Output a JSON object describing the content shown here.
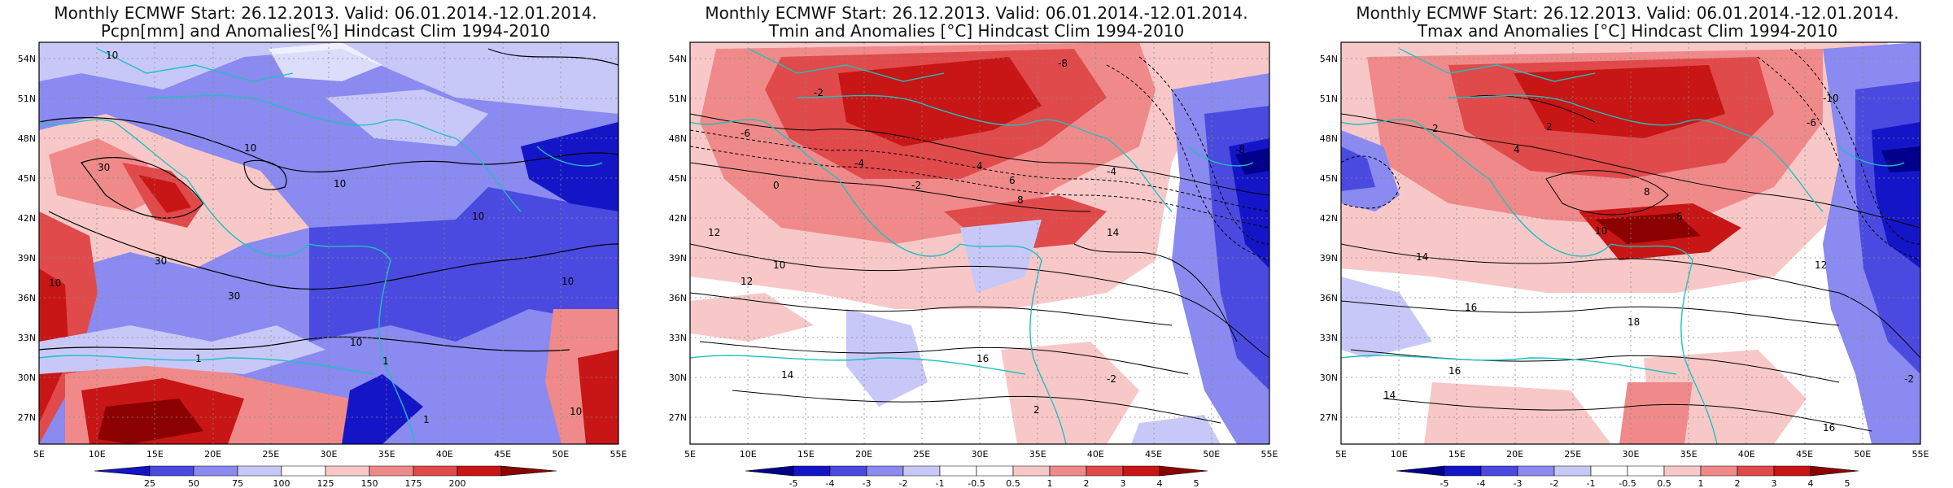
{
  "panels": [
    {
      "title_line1": "Monthly ECMWF Start: 26.12.2013. Valid: 06.01.2014.-12.01.2014.",
      "title_line2": "Pcpn[mm] and Anomalies[%] Hindcast Clim 1994-2010",
      "colorbar_labels": [
        "25",
        "50",
        "75",
        "100",
        "125",
        "150",
        "175",
        "200"
      ],
      "contour_labels": [
        "10",
        "10",
        "30",
        "30",
        "10",
        "10",
        "10",
        "30",
        "10",
        "1",
        "1",
        "1",
        "10",
        "10"
      ],
      "colors": [
        "#1515c8",
        "#4a4ae0",
        "#8a8af0",
        "#c8c8f8",
        "#ffffff",
        "#f8c8c8",
        "#f08a8a",
        "#e04a4a",
        "#c81515",
        "#8b0000"
      ]
    },
    {
      "title_line1": "Monthly ECMWF Start: 26.12.2013. Valid: 06.01.2014.-12.01.2014.",
      "title_line2": "Tmin and Anomalies [°C] Hindcast Clim 1994-2010",
      "colorbar_labels": [
        "-5",
        "-4",
        "-3",
        "-2",
        "-1",
        "-0.5",
        "0.5",
        "1",
        "2",
        "3",
        "4",
        "5"
      ],
      "contour_labels": [
        "-8",
        "-2",
        "-6",
        "-4",
        "-2",
        "0",
        "4",
        "-4",
        "6",
        "8",
        "12",
        "10",
        "14",
        "12",
        "14",
        "16",
        "2",
        "-2",
        "-8"
      ],
      "colors": [
        "#00008b",
        "#1515c8",
        "#4a4ae0",
        "#8a8af0",
        "#c8c8f8",
        "#ffffff",
        "#ffffff",
        "#f8c8c8",
        "#f08a8a",
        "#e04a4a",
        "#c81515",
        "#8b0000"
      ]
    },
    {
      "title_line1": "Monthly ECMWF Start: 26.12.2013. Valid: 06.01.2014.-12.01.2014.",
      "title_line2": "Tmax and Anomalies [°C] Hindcast Clim 1994-2010",
      "colorbar_labels": [
        "-5",
        "-4",
        "-3",
        "-2",
        "-1",
        "-0.5",
        "0.5",
        "1",
        "2",
        "3",
        "4",
        "5"
      ],
      "contour_labels": [
        "-10",
        "2",
        "-6",
        "4",
        "2",
        "10",
        "8",
        "6",
        "14",
        "12",
        "16",
        "18",
        "16",
        "14",
        "16",
        "-2"
      ],
      "colors": [
        "#00008b",
        "#1515c8",
        "#4a4ae0",
        "#8a8af0",
        "#c8c8f8",
        "#ffffff",
        "#ffffff",
        "#f8c8c8",
        "#f08a8a",
        "#e04a4a",
        "#c81515",
        "#8b0000"
      ]
    }
  ],
  "axes": {
    "lat_labels": [
      "54N",
      "51N",
      "48N",
      "45N",
      "42N",
      "39N",
      "36N",
      "33N",
      "30N",
      "27N"
    ],
    "lon_labels": [
      "5E",
      "10E",
      "15E",
      "20E",
      "25E",
      "30E",
      "35E",
      "40E",
      "45E",
      "50E",
      "55E"
    ]
  }
}
